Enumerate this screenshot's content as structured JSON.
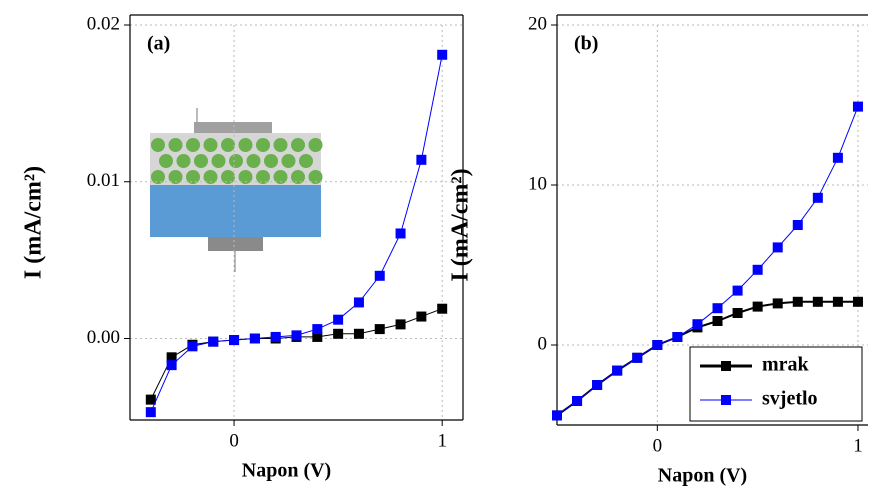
{
  "chart_data": [
    {
      "type": "line",
      "panel_label": "(a)",
      "x_label": "Napon (V)",
      "y_label": "I (mA/cm²)",
      "xlim": [
        -0.5,
        1.1
      ],
      "ylim": [
        -0.0052,
        0.02
      ],
      "xticks": [
        0,
        1
      ],
      "yticks": [
        {
          "value": 0,
          "label": "0.00"
        },
        {
          "value": 0.01,
          "label": "0.01"
        },
        {
          "value": 0.02,
          "label": "0.02"
        }
      ],
      "grid": true,
      "x": [
        -0.4,
        -0.3,
        -0.2,
        -0.1,
        0,
        0.1,
        0.2,
        0.3,
        0.4,
        0.5,
        0.6,
        0.7,
        0.8,
        0.9,
        1.0
      ],
      "series": [
        {
          "color": "#000000",
          "values": [
            -0.0039,
            -0.0012,
            -0.0004,
            -0.0002,
            -0.0001,
            0,
            0,
            0.0001,
            0.0001,
            0.0003,
            0.0003,
            0.0006,
            0.0009,
            0.0014,
            0.0019
          ]
        },
        {
          "color": "#0000ff",
          "values": [
            -0.0047,
            -0.0017,
            -0.0005,
            -0.0002,
            -0.0001,
            0,
            0.0001,
            0.0002,
            0.0006,
            0.0012,
            0.0023,
            0.004,
            0.0067,
            0.0114,
            0.0181
          ]
        }
      ]
    },
    {
      "type": "line",
      "panel_label": "(b)",
      "x_label": "Napon (V)",
      "y_label": "I (mA/cm²)",
      "xlim": [
        -0.5,
        1.05
      ],
      "ylim": [
        -5,
        20
      ],
      "xticks": [
        0,
        1
      ],
      "yticks": [
        0,
        10,
        20
      ],
      "grid": true,
      "legend": "lower right",
      "x": [
        -0.5,
        -0.4,
        -0.3,
        -0.2,
        -0.1,
        0,
        0.1,
        0.2,
        0.3,
        0.4,
        0.5,
        0.6,
        0.7,
        0.8,
        0.9,
        1.0
      ],
      "series": [
        {
          "name": "mrak",
          "color": "#000000",
          "values": [
            -4.4,
            -3.5,
            -2.5,
            -1.6,
            -0.8,
            0,
            0.5,
            1.1,
            1.5,
            2.0,
            2.4,
            2.6,
            2.7,
            2.7,
            2.7,
            2.7
          ]
        },
        {
          "name": "svjetlo",
          "color": "#0000ff",
          "values": [
            -4.4,
            -3.5,
            -2.5,
            -1.6,
            -0.8,
            0,
            0.5,
            1.3,
            2.3,
            3.4,
            4.7,
            6.1,
            7.5,
            9.2,
            11.7,
            14.9
          ]
        }
      ]
    }
  ]
}
